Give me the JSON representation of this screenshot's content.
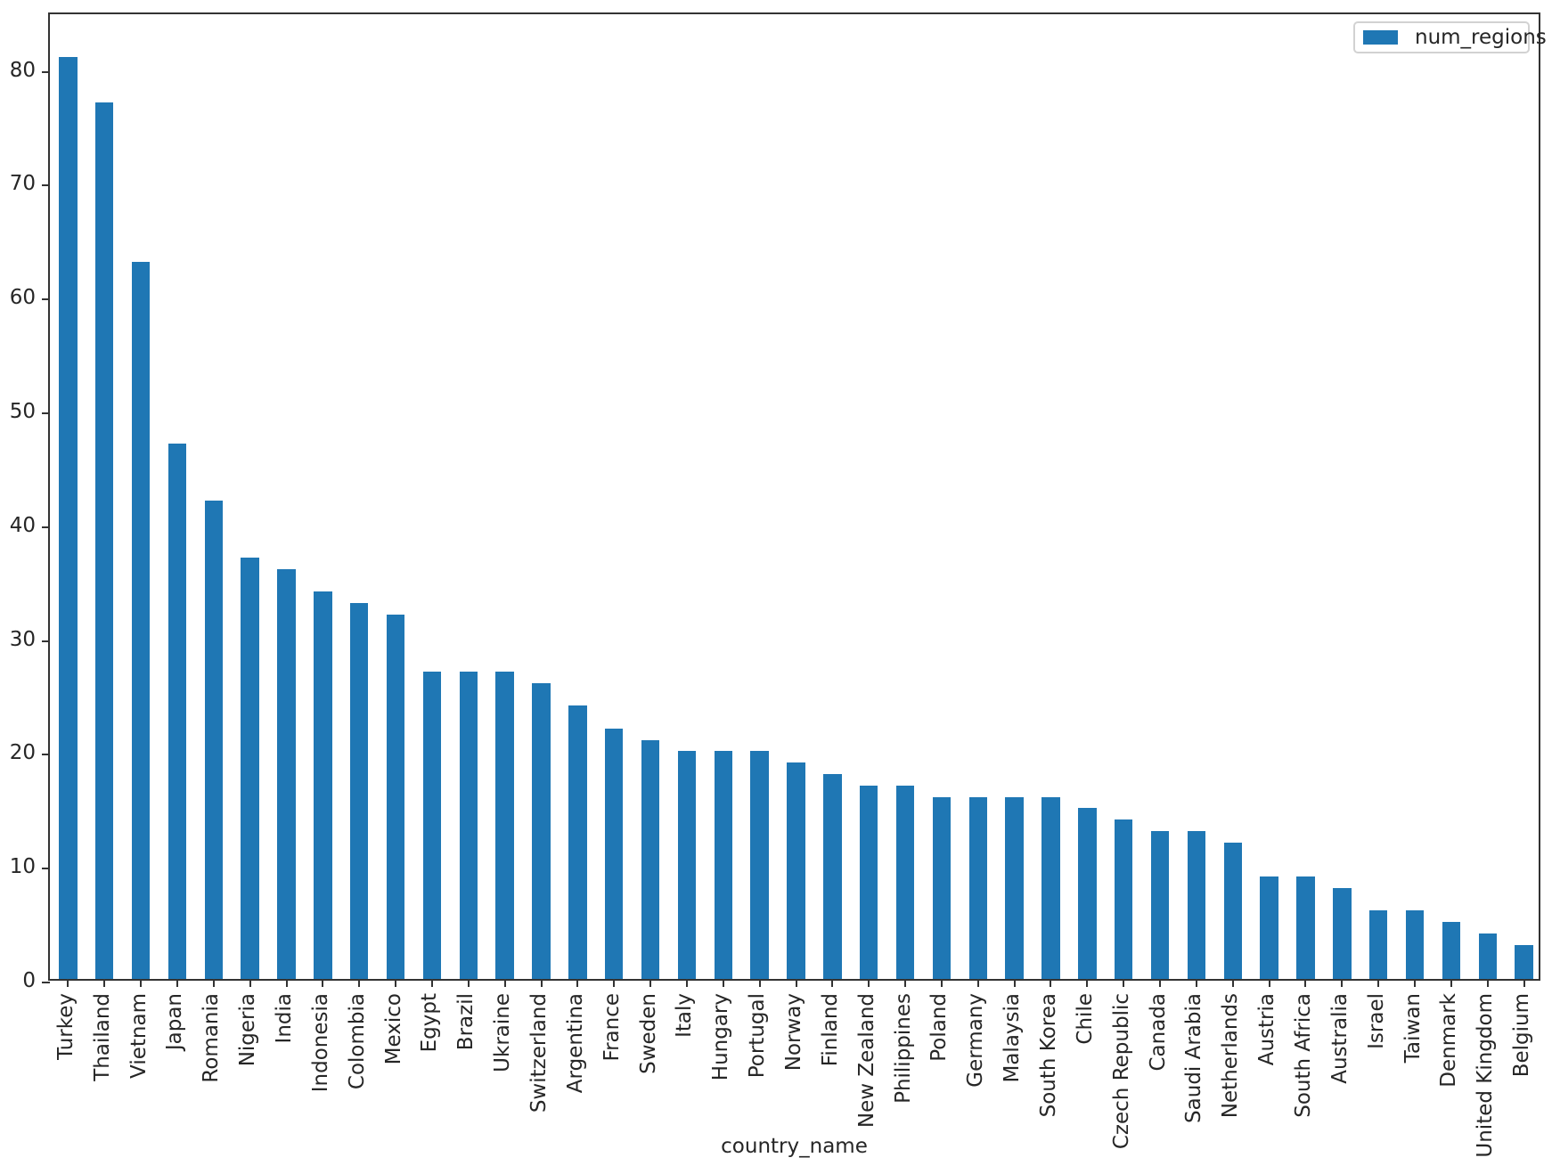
{
  "figure": {
    "xlabel": "country_name",
    "legend_label": "num_regions"
  },
  "chart_data": {
    "type": "bar",
    "title": "",
    "xlabel": "country_name",
    "ylabel": "",
    "legend": [
      "num_regions"
    ],
    "legend_position": "upper right",
    "grid": false,
    "bar_color": "#1f77b4",
    "axis_color": "#333333",
    "text_color": "#262626",
    "ylim": [
      0,
      85.05
    ],
    "yticks": [
      0,
      10,
      20,
      30,
      40,
      50,
      60,
      70,
      80
    ],
    "categories": [
      "Turkey",
      "Thailand",
      "Vietnam",
      "Japan",
      "Romania",
      "Nigeria",
      "India",
      "Indonesia",
      "Colombia",
      "Mexico",
      "Egypt",
      "Brazil",
      "Ukraine",
      "Switzerland",
      "Argentina",
      "France",
      "Sweden",
      "Italy",
      "Hungary",
      "Portugal",
      "Norway",
      "Finland",
      "New Zealand",
      "Philippines",
      "Poland",
      "Germany",
      "Malaysia",
      "South Korea",
      "Chile",
      "Czech Republic",
      "Canada",
      "Saudi Arabia",
      "Netherlands",
      "Austria",
      "South Africa",
      "Australia",
      "Israel",
      "Taiwan",
      "Denmark",
      "United Kingdom",
      "Belgium"
    ],
    "series": [
      {
        "name": "num_regions",
        "values": [
          81,
          77,
          63,
          47,
          42,
          37,
          36,
          34,
          33,
          32,
          27,
          27,
          27,
          26,
          24,
          22,
          21,
          20,
          20,
          20,
          19,
          18,
          17,
          17,
          16,
          16,
          16,
          16,
          15,
          14,
          13,
          13,
          12,
          9,
          9,
          8,
          6,
          6,
          5,
          4,
          3
        ]
      }
    ]
  }
}
